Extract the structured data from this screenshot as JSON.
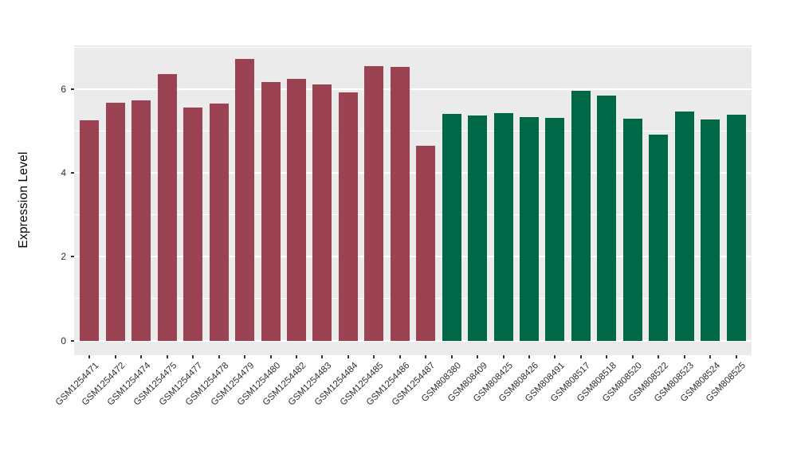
{
  "chart_data": {
    "type": "bar",
    "title": "",
    "xlabel": "",
    "ylabel": "Expression Level",
    "ylim": [
      -0.35,
      7.04
    ],
    "yticks": [
      0,
      2,
      4,
      6
    ],
    "yminor": [
      1,
      3,
      5,
      7
    ],
    "grid": "white major and minor horizontal gridlines on grey panel, legend none",
    "panel_bg": "#EBEBEB",
    "grid_color": "#FFFFFF",
    "group_colors": {
      "group1": "#9B4352",
      "group2": "#006747"
    },
    "bars": [
      {
        "label": "GSM1254471",
        "value": 5.26,
        "group": "group1"
      },
      {
        "label": "GSM1254472",
        "value": 5.68,
        "group": "group1"
      },
      {
        "label": "GSM1254474",
        "value": 5.73,
        "group": "group1"
      },
      {
        "label": "GSM1254475",
        "value": 6.36,
        "group": "group1"
      },
      {
        "label": "GSM1254477",
        "value": 5.56,
        "group": "group1"
      },
      {
        "label": "GSM1254478",
        "value": 5.65,
        "group": "group1"
      },
      {
        "label": "GSM1254479",
        "value": 6.72,
        "group": "group1"
      },
      {
        "label": "GSM1254480",
        "value": 6.17,
        "group": "group1"
      },
      {
        "label": "GSM1254482",
        "value": 6.24,
        "group": "group1"
      },
      {
        "label": "GSM1254483",
        "value": 6.11,
        "group": "group1"
      },
      {
        "label": "GSM1254484",
        "value": 5.92,
        "group": "group1"
      },
      {
        "label": "GSM1254485",
        "value": 6.55,
        "group": "group1"
      },
      {
        "label": "GSM1254486",
        "value": 6.53,
        "group": "group1"
      },
      {
        "label": "GSM1254487",
        "value": 4.65,
        "group": "group1"
      },
      {
        "label": "GSM808380",
        "value": 5.4,
        "group": "group2"
      },
      {
        "label": "GSM808409",
        "value": 5.37,
        "group": "group2"
      },
      {
        "label": "GSM808425",
        "value": 5.42,
        "group": "group2"
      },
      {
        "label": "GSM808426",
        "value": 5.34,
        "group": "group2"
      },
      {
        "label": "GSM808491",
        "value": 5.32,
        "group": "group2"
      },
      {
        "label": "GSM808517",
        "value": 5.95,
        "group": "group2"
      },
      {
        "label": "GSM808518",
        "value": 5.85,
        "group": "group2"
      },
      {
        "label": "GSM808520",
        "value": 5.3,
        "group": "group2"
      },
      {
        "label": "GSM808522",
        "value": 4.92,
        "group": "group2"
      },
      {
        "label": "GSM808523",
        "value": 5.46,
        "group": "group2"
      },
      {
        "label": "GSM808524",
        "value": 5.27,
        "group": "group2"
      },
      {
        "label": "GSM808525",
        "value": 5.38,
        "group": "group2"
      }
    ]
  }
}
